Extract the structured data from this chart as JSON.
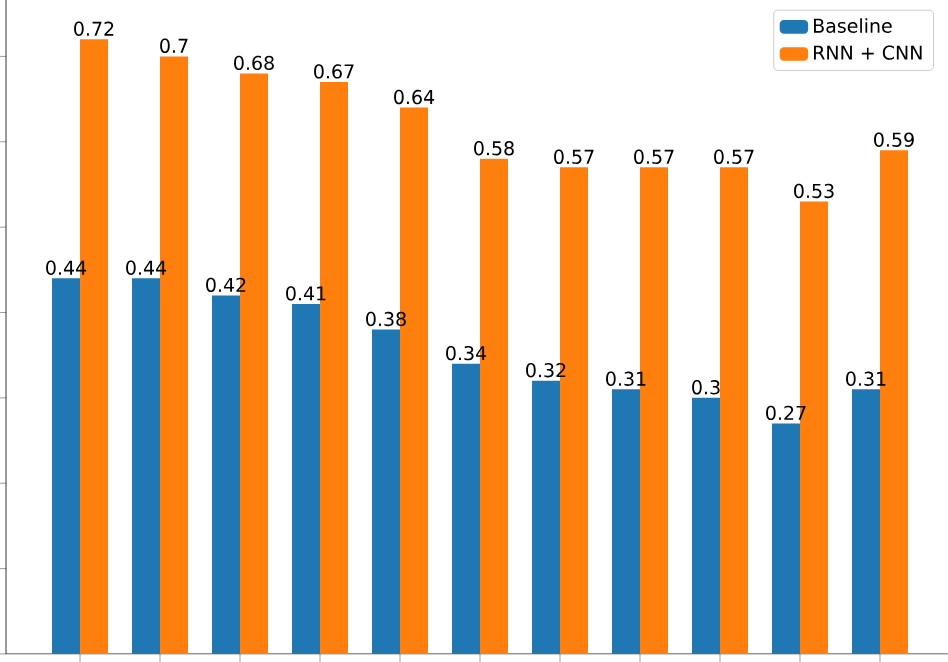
{
  "chart_data": {
    "type": "bar",
    "categories": [
      null,
      null,
      null,
      null,
      null,
      null,
      null,
      null,
      null,
      null,
      null
    ],
    "series": [
      {
        "name": "Baseline",
        "color": "#1f77b4",
        "values": [
          0.44,
          0.44,
          0.42,
          0.41,
          0.38,
          0.34,
          0.32,
          0.31,
          0.3,
          0.27,
          0.31
        ]
      },
      {
        "name": "RNN + CNN",
        "color": "#ff7f0e",
        "values": [
          0.72,
          0.7,
          0.68,
          0.67,
          0.64,
          0.58,
          0.57,
          0.57,
          0.57,
          0.53,
          0.59
        ]
      }
    ],
    "data_labels": true,
    "legend": "top right"
  }
}
